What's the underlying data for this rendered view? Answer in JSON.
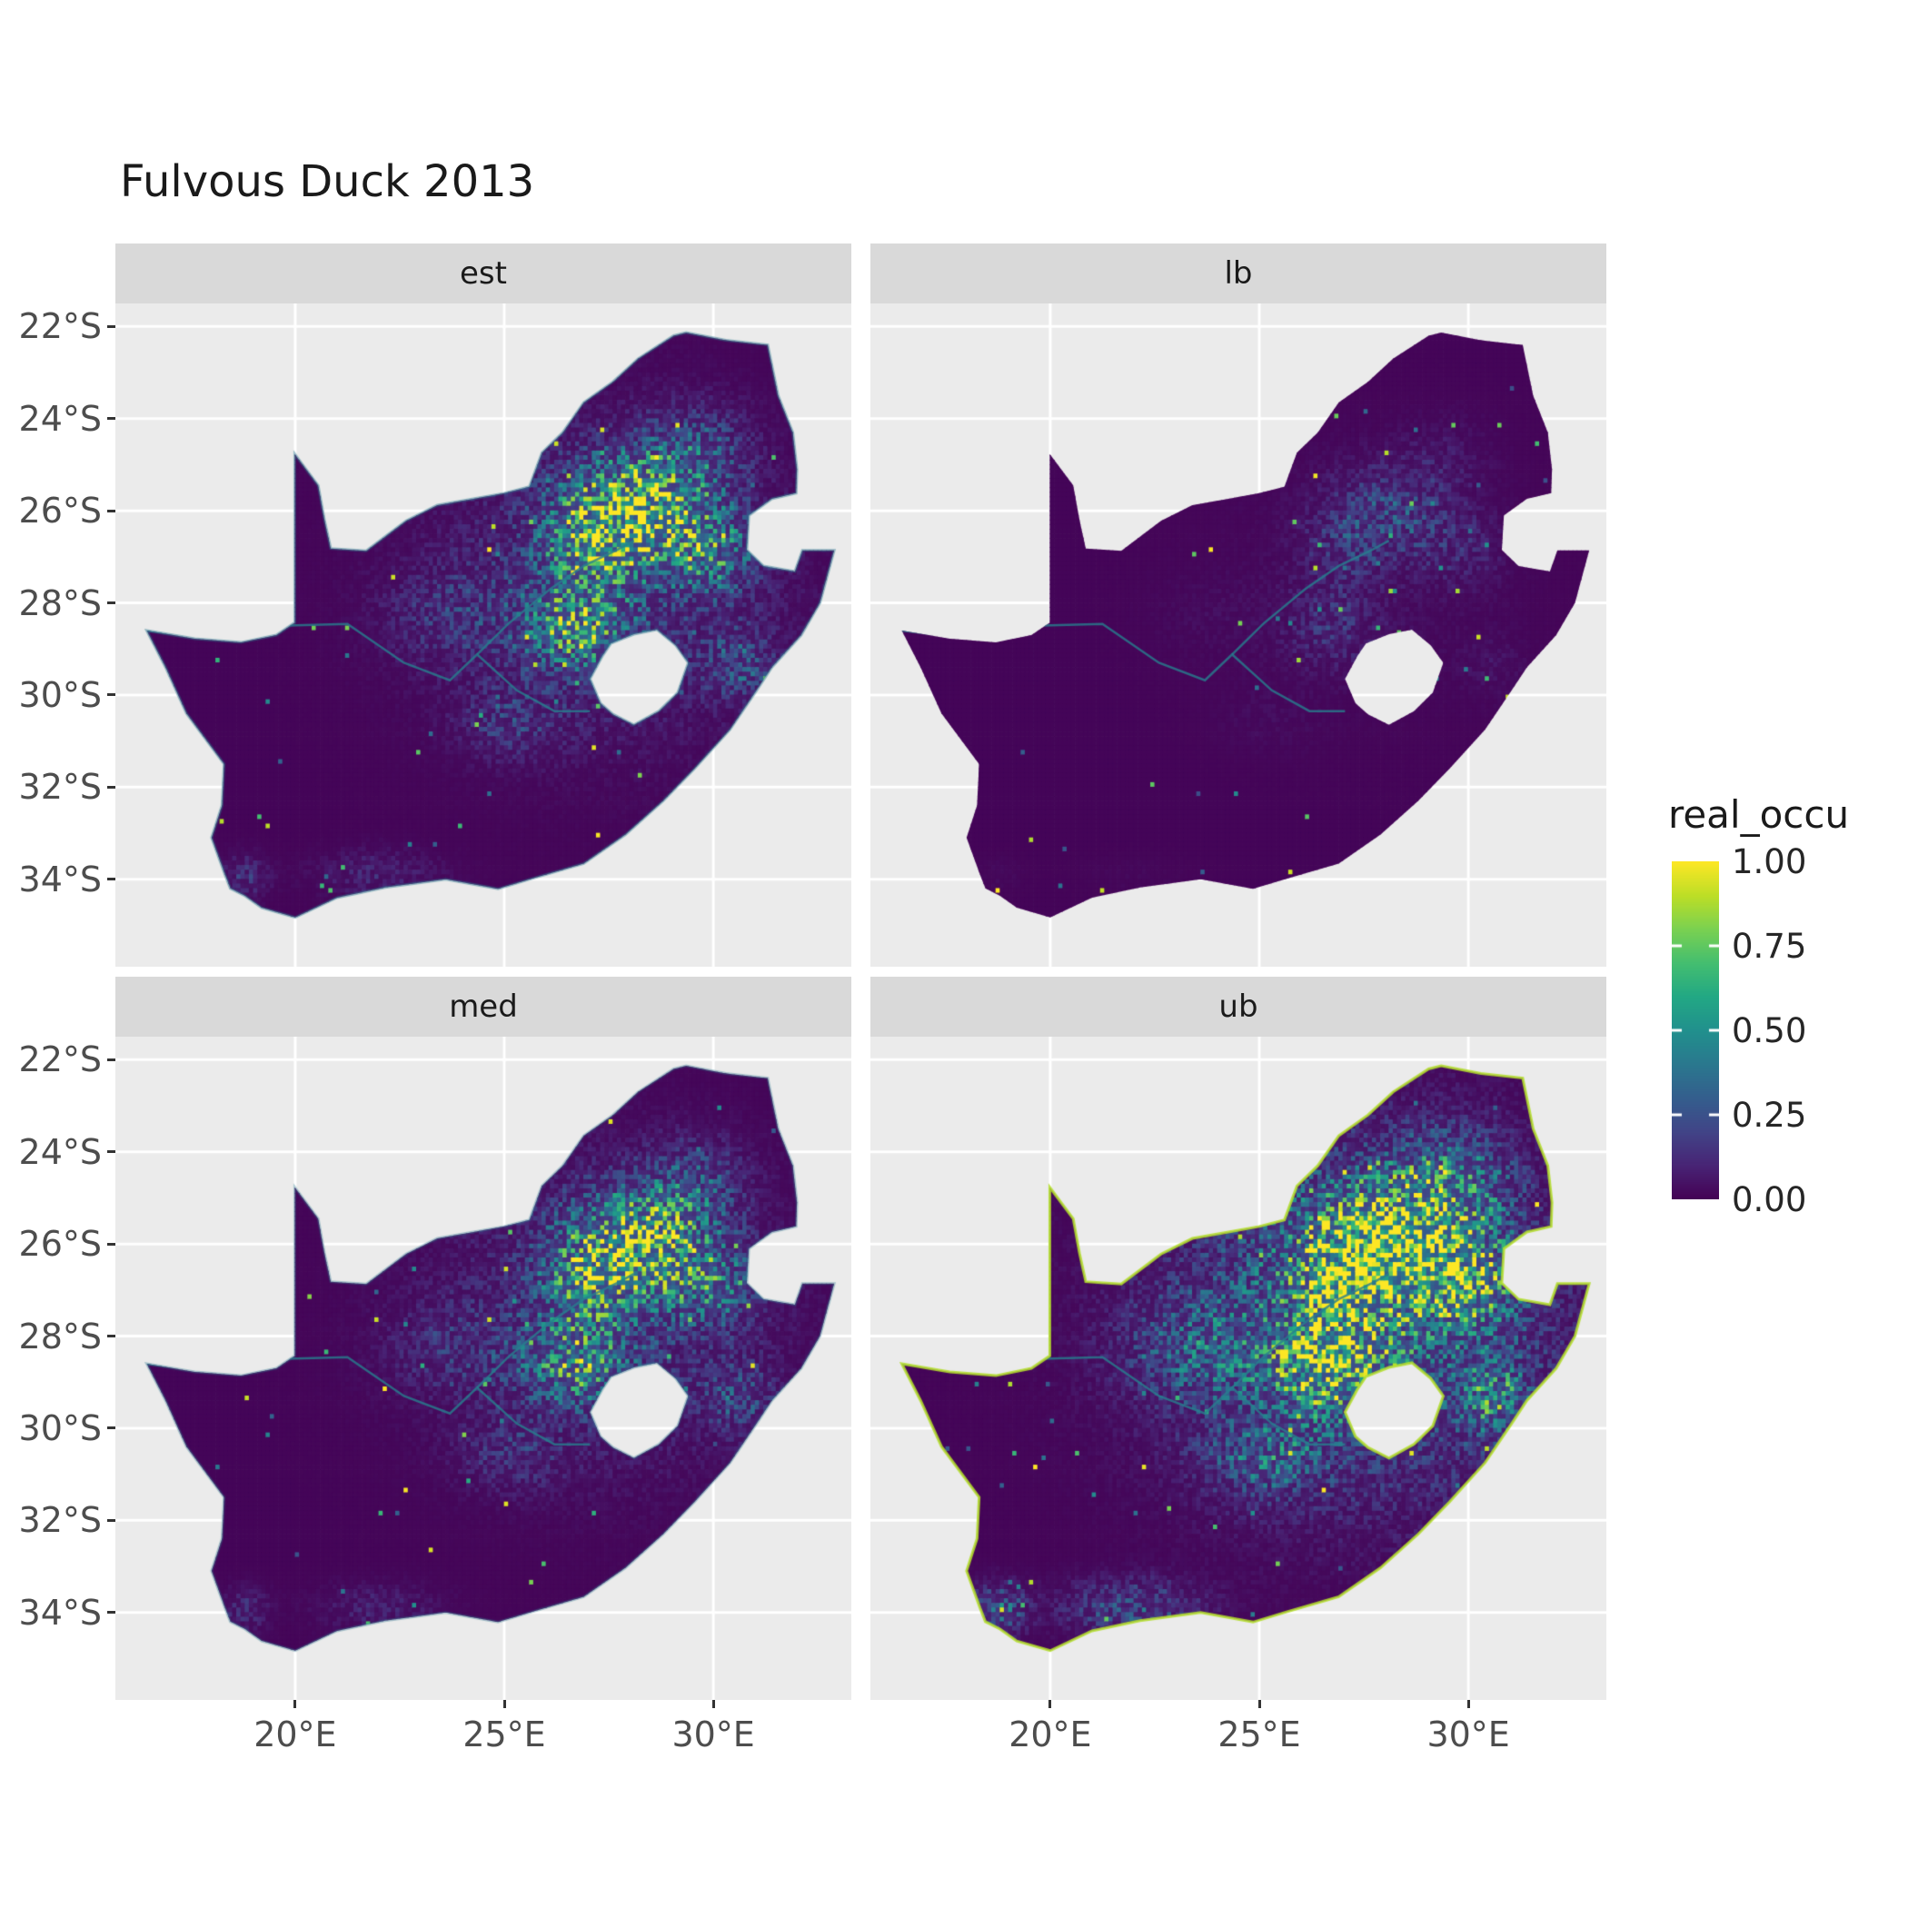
{
  "title": "Fulvous Duck 2013",
  "legend": {
    "title": "real_occu",
    "entries": [
      {
        "value": 1.0,
        "label": "1.00"
      },
      {
        "value": 0.75,
        "label": "0.75"
      },
      {
        "value": 0.5,
        "label": "0.50"
      },
      {
        "value": 0.25,
        "label": "0.25"
      },
      {
        "value": 0.0,
        "label": "0.00"
      }
    ]
  },
  "axes": {
    "x_ticks": [
      {
        "value": 20,
        "label": "20°E"
      },
      {
        "value": 25,
        "label": "25°E"
      },
      {
        "value": 30,
        "label": "30°E"
      }
    ],
    "y_ticks": [
      {
        "value": -22,
        "label": "22°S"
      },
      {
        "value": -24,
        "label": "24°S"
      },
      {
        "value": -26,
        "label": "26°S"
      },
      {
        "value": -28,
        "label": "28°S"
      },
      {
        "value": -30,
        "label": "30°S"
      },
      {
        "value": -32,
        "label": "32°S"
      },
      {
        "value": -34,
        "label": "34°S"
      }
    ]
  },
  "theme": {
    "panel_bg": "#ebebeb",
    "strip_bg": "#d9d9d9",
    "grid_color": "#ffffff",
    "axis_text_color": "#4d4d4d",
    "tick_color": "#333333",
    "title_color": "#1a1a1a"
  },
  "chart_data": {
    "type": "heatmap",
    "title": "Fulvous Duck 2013",
    "region": "South Africa",
    "variable": "real_occu",
    "value_range": [
      0,
      1
    ],
    "facets": [
      "est",
      "lb",
      "med",
      "ub"
    ],
    "x_range": [
      15.7,
      33.3
    ],
    "y_range": [
      -35.9,
      -21.5
    ],
    "colormap": "viridis",
    "legend_position": "right",
    "grid": true,
    "cell_size_deg": 0.1,
    "viridis_stops": [
      [
        0.0,
        68,
        1,
        84
      ],
      [
        0.1,
        72,
        36,
        117
      ],
      [
        0.2,
        65,
        68,
        135
      ],
      [
        0.3,
        52,
        94,
        141
      ],
      [
        0.4,
        42,
        120,
        142
      ],
      [
        0.5,
        33,
        144,
        141
      ],
      [
        0.6,
        34,
        168,
        132
      ],
      [
        0.7,
        68,
        190,
        112
      ],
      [
        0.8,
        122,
        209,
        81
      ],
      [
        0.9,
        189,
        222,
        38
      ],
      [
        1.0,
        253,
        231,
        37
      ]
    ],
    "outline": [
      [
        16.45,
        -28.6
      ],
      [
        17.6,
        -28.78
      ],
      [
        18.7,
        -28.86
      ],
      [
        19.55,
        -28.7
      ],
      [
        19.99,
        -28.43
      ],
      [
        19.99,
        -24.77
      ],
      [
        20.55,
        -25.45
      ],
      [
        20.7,
        -26.2
      ],
      [
        20.85,
        -26.82
      ],
      [
        21.7,
        -26.87
      ],
      [
        22.65,
        -26.22
      ],
      [
        23.4,
        -25.88
      ],
      [
        24.2,
        -25.75
      ],
      [
        25.0,
        -25.62
      ],
      [
        25.6,
        -25.48
      ],
      [
        25.9,
        -24.74
      ],
      [
        26.4,
        -24.3
      ],
      [
        26.9,
        -23.65
      ],
      [
        27.6,
        -23.2
      ],
      [
        28.2,
        -22.7
      ],
      [
        29.05,
        -22.2
      ],
      [
        29.35,
        -22.13
      ],
      [
        30.3,
        -22.3
      ],
      [
        31.3,
        -22.4
      ],
      [
        31.55,
        -23.5
      ],
      [
        31.9,
        -24.3
      ],
      [
        32.0,
        -25.1
      ],
      [
        31.98,
        -25.62
      ],
      [
        31.4,
        -25.74
      ],
      [
        30.85,
        -26.1
      ],
      [
        30.8,
        -26.85
      ],
      [
        31.2,
        -27.2
      ],
      [
        31.95,
        -27.32
      ],
      [
        32.13,
        -26.86
      ],
      [
        32.89,
        -26.86
      ],
      [
        32.55,
        -28.0
      ],
      [
        32.1,
        -28.7
      ],
      [
        31.4,
        -29.4
      ],
      [
        31.05,
        -29.88
      ],
      [
        30.4,
        -30.75
      ],
      [
        29.55,
        -31.6
      ],
      [
        28.8,
        -32.3
      ],
      [
        27.9,
        -33.03
      ],
      [
        26.9,
        -33.66
      ],
      [
        25.65,
        -33.99
      ],
      [
        24.85,
        -34.21
      ],
      [
        23.6,
        -34.0
      ],
      [
        22.15,
        -34.18
      ],
      [
        21.0,
        -34.4
      ],
      [
        20.0,
        -34.83
      ],
      [
        19.2,
        -34.62
      ],
      [
        18.8,
        -34.36
      ],
      [
        18.45,
        -34.2
      ],
      [
        18.32,
        -33.9
      ],
      [
        18.0,
        -33.1
      ],
      [
        18.25,
        -32.4
      ],
      [
        18.3,
        -31.5
      ],
      [
        17.4,
        -30.4
      ],
      [
        16.9,
        -29.4
      ]
    ],
    "lesotho_hole": [
      [
        27.05,
        -29.65
      ],
      [
        27.35,
        -29.15
      ],
      [
        27.55,
        -28.88
      ],
      [
        28.1,
        -28.68
      ],
      [
        28.65,
        -28.58
      ],
      [
        29.1,
        -28.92
      ],
      [
        29.4,
        -29.3
      ],
      [
        29.15,
        -29.95
      ],
      [
        28.7,
        -30.35
      ],
      [
        28.1,
        -30.65
      ],
      [
        27.6,
        -30.42
      ],
      [
        27.3,
        -30.18
      ]
    ],
    "rivers": [
      [
        [
          16.45,
          -28.6
        ],
        [
          17.9,
          -28.76
        ],
        [
          19.6,
          -28.5
        ],
        [
          21.25,
          -28.46
        ],
        [
          22.6,
          -29.3
        ],
        [
          23.7,
          -29.68
        ],
        [
          24.35,
          -29.12
        ],
        [
          25.3,
          -29.9
        ],
        [
          26.2,
          -30.35
        ],
        [
          27.05,
          -30.35
        ]
      ],
      [
        [
          24.35,
          -29.12
        ],
        [
          25.1,
          -28.45
        ],
        [
          26.1,
          -27.7
        ],
        [
          26.9,
          -27.2
        ],
        [
          27.7,
          -26.85
        ],
        [
          28.1,
          -26.65
        ]
      ]
    ],
    "hotspots": [
      [
        27.5,
        -27.5,
        3.6,
        3.0,
        0.2
      ],
      [
        28.15,
        -26.0,
        1.55,
        1.05,
        0.9
      ],
      [
        27.0,
        -26.9,
        1.0,
        0.8,
        0.45
      ],
      [
        26.75,
        -28.55,
        1.15,
        0.9,
        0.55
      ],
      [
        29.9,
        -26.9,
        1.05,
        0.85,
        0.4
      ],
      [
        29.5,
        -24.7,
        1.2,
        0.9,
        0.25
      ],
      [
        30.6,
        -29.35,
        0.8,
        0.7,
        0.25
      ],
      [
        25.2,
        -30.6,
        1.2,
        0.75,
        0.15
      ],
      [
        23.8,
        -28.3,
        1.6,
        1.0,
        0.13
      ],
      [
        22.0,
        -33.9,
        1.4,
        0.5,
        0.1
      ],
      [
        18.8,
        -33.95,
        0.55,
        0.45,
        0.14
      ]
    ],
    "facet_params": {
      "est": {
        "mult": 1.0,
        "gamma": 1.0,
        "speckle": 1.0,
        "coast": "rgba(42,120,142,0.45)"
      },
      "lb": {
        "mult": 0.33,
        "gamma": 1.35,
        "speckle": 0.5,
        "coast": null
      },
      "med": {
        "mult": 0.9,
        "gamma": 1.0,
        "speckle": 1.1,
        "coast": "rgba(42,120,142,0.35)"
      },
      "ub": {
        "mult": 1.55,
        "gamma": 0.72,
        "speckle": 2.0,
        "coast": "rgba(180,222,44,0.85)"
      }
    }
  }
}
